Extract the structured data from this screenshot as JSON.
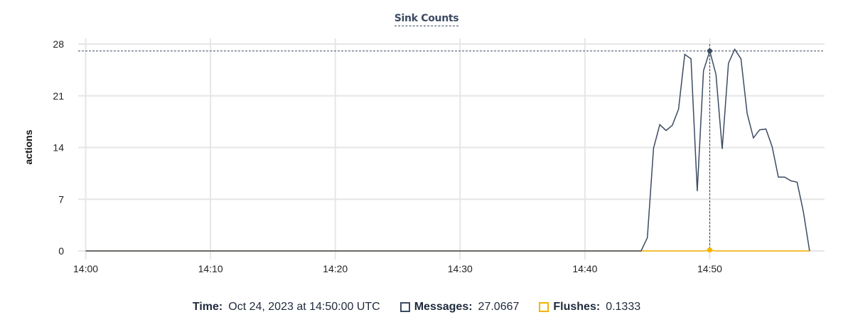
{
  "chart_data": {
    "type": "line",
    "title": "Sink Counts",
    "xlabel": "",
    "ylabel": "actions",
    "x_ticks": [
      "14:00",
      "14:10",
      "14:20",
      "14:30",
      "14:40",
      "14:50"
    ],
    "y_ticks": [
      0,
      7,
      14,
      21,
      28
    ],
    "ylim": [
      0,
      28
    ],
    "xlim": [
      "13:59:24",
      "14:59:12"
    ],
    "grid": true,
    "series": [
      {
        "name": "Messages",
        "color": "#3d4b63",
        "points": [
          [
            "14:00:00",
            0
          ],
          [
            "14:44:30",
            0
          ],
          [
            "14:45:00",
            1.8
          ],
          [
            "14:45:30",
            13.9
          ],
          [
            "14:46:00",
            17.1
          ],
          [
            "14:46:30",
            16.3
          ],
          [
            "14:47:00",
            17.0
          ],
          [
            "14:47:30",
            19.2
          ],
          [
            "14:48:00",
            26.6
          ],
          [
            "14:48:30",
            26.0
          ],
          [
            "14:49:00",
            8.1
          ],
          [
            "14:49:30",
            24.4
          ],
          [
            "14:50:00",
            27.0667
          ],
          [
            "14:50:30",
            23.9
          ],
          [
            "14:51:00",
            13.8
          ],
          [
            "14:51:30",
            25.4
          ],
          [
            "14:52:00",
            27.3
          ],
          [
            "14:52:30",
            26.0
          ],
          [
            "14:53:00",
            18.6
          ],
          [
            "14:53:30",
            15.3
          ],
          [
            "14:54:00",
            16.4
          ],
          [
            "14:54:30",
            16.5
          ],
          [
            "14:55:00",
            14.1
          ],
          [
            "14:55:30",
            10.0
          ],
          [
            "14:56:00",
            10.0
          ],
          [
            "14:56:30",
            9.5
          ],
          [
            "14:57:00",
            9.3
          ],
          [
            "14:57:30",
            5.3
          ],
          [
            "14:58:00",
            0
          ]
        ]
      },
      {
        "name": "Flushes",
        "color": "#f5b400",
        "points": [
          [
            "14:00:00",
            0
          ],
          [
            "14:49:30",
            0
          ],
          [
            "14:50:00",
            0.1333
          ],
          [
            "14:50:30",
            0
          ],
          [
            "14:58:00",
            0
          ]
        ]
      }
    ],
    "hover": {
      "time": "14:50:00"
    }
  },
  "legend": {
    "time_label": "Time:",
    "time_value": "Oct 24, 2023 at 14:50:00 UTC",
    "messages_label": "Messages:",
    "messages_value": "27.0667",
    "flushes_label": "Flushes:",
    "flushes_value": "0.1333"
  }
}
